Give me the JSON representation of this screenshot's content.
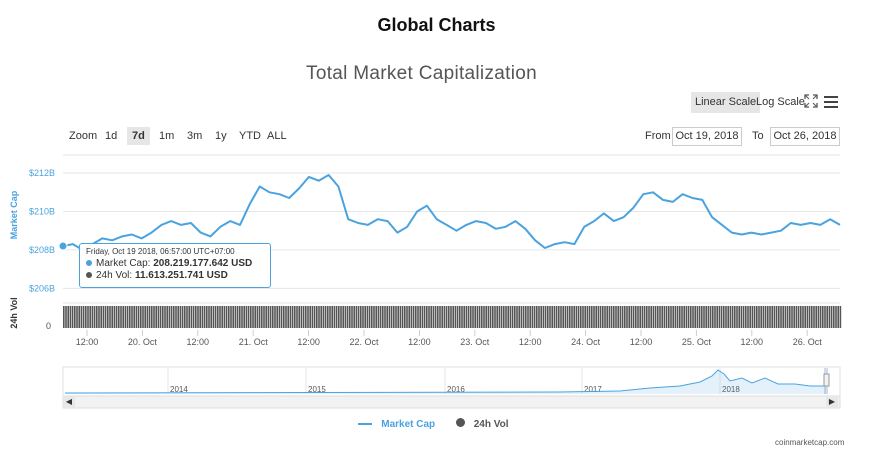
{
  "page_title": "Global Charts",
  "chart_title": "Total Market Capitalization",
  "controls": {
    "linear_scale": "Linear Scale",
    "log_scale": "Log Scale",
    "zoom_label": "Zoom",
    "zoom_options": [
      "1d",
      "7d",
      "1m",
      "3m",
      "1y",
      "YTD",
      "ALL"
    ],
    "zoom_active": "7d",
    "from_label": "From",
    "from_value": "Oct 19, 2018",
    "to_label": "To",
    "to_value": "Oct 26, 2018"
  },
  "tooltip": {
    "date": "Friday, Oct 19 2018, 06:57:00 UTC+07:00",
    "market_cap_label": "Market Cap:",
    "market_cap_value": "208.219.177.642 USD",
    "vol_label": "24h Vol:",
    "vol_value": "11.613.251.741 USD"
  },
  "legend": {
    "market_cap": "Market Cap",
    "vol": "24h Vol"
  },
  "credit": "coinmarketcap.com",
  "colors": {
    "line": "#4aa3df",
    "volume": "#555555",
    "navigator": "#4aa3df"
  },
  "chart_data": {
    "type": "line",
    "y_axis_label": "Market Cap",
    "vol_axis_label": "24h Vol",
    "y_ticks": [
      "$206B",
      "$208B",
      "$210B",
      "$212B"
    ],
    "y_tick_values": [
      206,
      208,
      210,
      212
    ],
    "ylim": [
      205.6,
      213.2
    ],
    "vol_ticks": [
      "0"
    ],
    "x_ticks": [
      "12:00",
      "20. Oct",
      "12:00",
      "21. Oct",
      "12:00",
      "22. Oct",
      "12:00",
      "23. Oct",
      "12:00",
      "24. Oct",
      "12:00",
      "25. Oct",
      "12:00",
      "26. Oct"
    ],
    "series": [
      {
        "name": "Market Cap",
        "values": [
          208.2,
          208.3,
          208.0,
          208.3,
          208.6,
          208.5,
          208.7,
          208.8,
          208.6,
          208.9,
          209.3,
          209.5,
          209.3,
          209.4,
          208.9,
          208.7,
          209.2,
          209.5,
          209.3,
          210.4,
          211.3,
          211.0,
          210.9,
          210.7,
          211.2,
          211.8,
          211.6,
          211.9,
          211.3,
          209.6,
          209.4,
          209.3,
          209.6,
          209.5,
          208.9,
          209.2,
          210.0,
          210.3,
          209.6,
          209.3,
          209.0,
          209.3,
          209.5,
          209.4,
          209.1,
          209.2,
          209.5,
          209.1,
          208.5,
          208.1,
          208.3,
          208.4,
          208.3,
          209.2,
          209.5,
          209.9,
          209.5,
          209.7,
          210.2,
          210.9,
          211.0,
          210.6,
          210.5,
          210.9,
          210.7,
          210.6,
          209.7,
          209.3,
          208.9,
          208.8,
          208.9,
          208.8,
          208.9,
          209.0,
          209.4,
          209.3,
          209.4,
          209.3,
          209.6,
          209.3
        ]
      }
    ],
    "volume_note": "24h Vol bars near-constant across range",
    "navigator": {
      "years": [
        "2014",
        "2015",
        "2016",
        "2017",
        "2018"
      ]
    }
  }
}
